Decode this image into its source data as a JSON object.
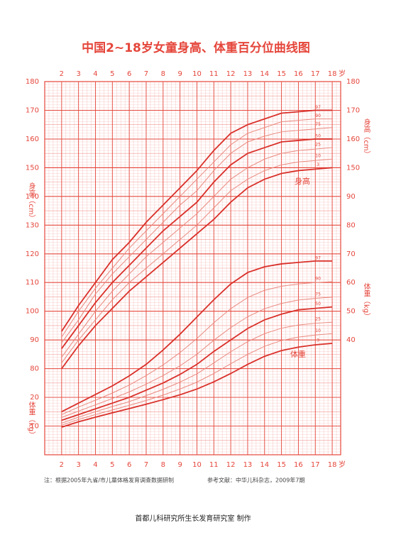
{
  "chart_data": {
    "type": "line",
    "title": "中国2~18岁女童身高、体重百分位曲线图",
    "x_unit": "岁",
    "x": [
      2,
      3,
      4,
      5,
      6,
      7,
      8,
      9,
      10,
      11,
      12,
      13,
      14,
      15,
      16,
      17,
      18
    ],
    "xlim": [
      1,
      18.5
    ],
    "xticks": [
      2,
      3,
      4,
      5,
      6,
      7,
      8,
      9,
      10,
      11,
      12,
      13,
      14,
      15,
      16,
      17,
      18
    ],
    "ylim": [
      50,
      180
    ],
    "yticks": [
      80,
      90,
      100,
      110,
      120,
      130,
      140,
      150,
      160,
      170,
      180
    ],
    "yticks_right": [
      150,
      160,
      170,
      180
    ],
    "y_label": "身高（cm）",
    "y2lim": [
      0,
      130
    ],
    "y2ticks": [
      10,
      20
    ],
    "y2ticks_right": [
      40,
      50,
      60,
      70,
      80,
      90
    ],
    "y2_label": "体重（kg）",
    "height_label": "身高",
    "weight_label": "体重",
    "grid": true,
    "color": "#e5463b",
    "series": [
      {
        "name": "97",
        "values": [
          93,
          102,
          110,
          118,
          124,
          131,
          137,
          143,
          149,
          156,
          162,
          165,
          167,
          169,
          169.5,
          170,
          170
        ]
      },
      {
        "name": "90",
        "values": [
          91,
          100,
          108,
          115,
          122,
          128,
          134,
          140,
          146,
          152,
          158,
          162,
          164,
          166,
          166.5,
          167,
          167
        ]
      },
      {
        "name": "75",
        "values": [
          89,
          97,
          106,
          113,
          119,
          125,
          131,
          137,
          142,
          149,
          155,
          159,
          161,
          162.5,
          163,
          163.5,
          164
        ]
      },
      {
        "name": "50",
        "values": [
          87,
          95,
          103,
          110,
          116,
          122,
          128,
          133,
          138,
          145,
          151,
          155,
          157,
          159,
          159.5,
          160,
          160
        ]
      },
      {
        "name": "25",
        "values": [
          84,
          92,
          100,
          107,
          113,
          119,
          124,
          129,
          134,
          140,
          146,
          150,
          153,
          155,
          156,
          156.5,
          157
        ]
      },
      {
        "name": "10",
        "values": [
          82,
          90,
          97,
          104,
          110,
          115,
          120,
          125,
          130,
          136,
          142,
          146,
          149,
          151,
          152,
          152.5,
          153
        ]
      },
      {
        "name": "3",
        "values": [
          80,
          88,
          95,
          101,
          107,
          112,
          117,
          122,
          127,
          132,
          138,
          143,
          146,
          148,
          149,
          149.5,
          150
        ]
      },
      {
        "name": "97",
        "axis": "y2",
        "values": [
          15,
          18,
          21,
          24,
          27.5,
          31.5,
          36.5,
          42,
          48,
          54,
          59.5,
          63.5,
          65.5,
          66.5,
          67,
          67.5,
          67.5
        ]
      },
      {
        "name": "90",
        "axis": "y2",
        "values": [
          14,
          16.6,
          19,
          21.5,
          24.3,
          27.6,
          31.3,
          35.6,
          40.5,
          46,
          50.9,
          54.8,
          57.3,
          58.7,
          59.5,
          60,
          60.3
        ]
      },
      {
        "name": "75",
        "axis": "y2",
        "values": [
          13,
          15.2,
          17.4,
          19.6,
          21.9,
          24.6,
          27.6,
          31,
          35,
          39.9,
          44.3,
          48.1,
          50.9,
          52.7,
          53.9,
          54.5,
          54.9
        ]
      },
      {
        "name": "50",
        "axis": "y2",
        "values": [
          12,
          14,
          16,
          18,
          20,
          22.5,
          25,
          28,
          31.5,
          36,
          40,
          44,
          47,
          49,
          50.5,
          51,
          51.5
        ]
      },
      {
        "name": "25",
        "axis": "y2",
        "values": [
          11,
          13.1,
          15,
          16.8,
          18.5,
          20.6,
          22.8,
          25.3,
          28.2,
          32,
          35.9,
          39.4,
          42.2,
          44.1,
          45.2,
          45.8,
          46.2
        ]
      },
      {
        "name": "10",
        "axis": "y2",
        "values": [
          10.3,
          12.3,
          14,
          15.6,
          17.2,
          18.9,
          20.8,
          22.9,
          25.3,
          28.3,
          31.7,
          35,
          37.8,
          39.8,
          41,
          41.7,
          42.2
        ]
      },
      {
        "name": "3",
        "axis": "y2",
        "values": [
          9.6,
          11.5,
          13.1,
          14.6,
          16.1,
          17.6,
          19.2,
          20.9,
          22.9,
          25.4,
          28.3,
          31.5,
          34.3,
          36.3,
          37.5,
          38.3,
          38.8
        ]
      }
    ]
  },
  "footer": {
    "note": "注：根据2005年九省/市儿童体格发育调查数据研制",
    "reference": "参考文献：中华儿科杂志，2009年7期",
    "credit": "首都儿科研究所生长发育研究室  制作"
  }
}
